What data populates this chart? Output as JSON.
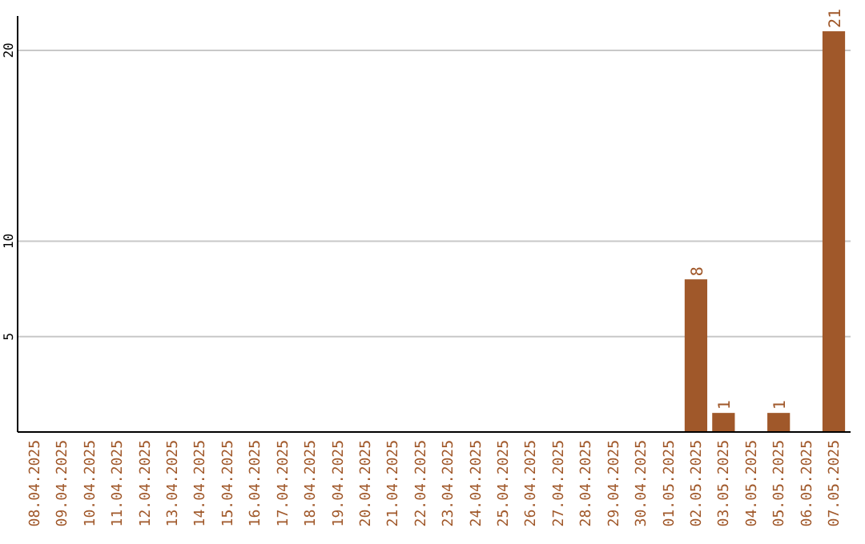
{
  "chart_data": {
    "type": "bar",
    "categories": [
      "08.04.2025",
      "09.04.2025",
      "10.04.2025",
      "11.04.2025",
      "12.04.2025",
      "13.04.2025",
      "14.04.2025",
      "15.04.2025",
      "16.04.2025",
      "17.04.2025",
      "18.04.2025",
      "19.04.2025",
      "20.04.2025",
      "21.04.2025",
      "22.04.2025",
      "23.04.2025",
      "24.04.2025",
      "25.04.2025",
      "26.04.2025",
      "27.04.2025",
      "28.04.2025",
      "29.04.2025",
      "30.04.2025",
      "01.05.2025",
      "02.05.2025",
      "03.05.2025",
      "04.05.2025",
      "05.05.2025",
      "06.05.2025",
      "07.05.2025"
    ],
    "values": [
      0,
      0,
      0,
      0,
      0,
      0,
      0,
      0,
      0,
      0,
      0,
      0,
      0,
      0,
      0,
      0,
      0,
      0,
      0,
      0,
      0,
      0,
      0,
      0,
      8,
      1,
      0,
      1,
      0,
      21
    ],
    "value_labels": [
      null,
      null,
      null,
      null,
      null,
      null,
      null,
      null,
      null,
      null,
      null,
      null,
      null,
      null,
      null,
      null,
      null,
      null,
      null,
      null,
      null,
      null,
      null,
      null,
      "8",
      "1",
      null,
      "1",
      null,
      "21"
    ],
    "color": "#a0582a",
    "ylim": [
      0,
      21.8
    ],
    "yticks": [
      5,
      10,
      20
    ],
    "grid": "y"
  }
}
